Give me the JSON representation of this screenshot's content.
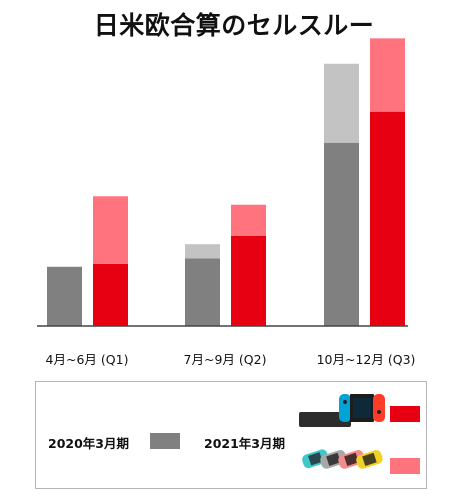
{
  "title": "日米欧合算のセルスルー",
  "colors": {
    "prev_year": "#808080",
    "prev_year_light": "#c3c3c3",
    "switch": "#e60012",
    "switch_lite": "#ff737e",
    "axis": "#444444"
  },
  "chart_data": {
    "type": "bar",
    "stacked": true,
    "title": "日米欧合算のセルスルー",
    "categories": [
      "4月~6月 (Q1)",
      "7月~9月 (Q2)",
      "10月~12月 (Q3)"
    ],
    "y_axis_printed": false,
    "ylim": [
      0,
      100
    ],
    "series": [
      {
        "name": "2020年3月期",
        "group": "2020年3月期",
        "segment": "base",
        "values": [
          21,
          24,
          65
        ]
      },
      {
        "name": "",
        "group": "2020年3月期",
        "segment": "top",
        "values": [
          0,
          5,
          28
        ]
      },
      {
        "name": "",
        "group": "2021年3月期",
        "segment": "Nintendo Switch",
        "values": [
          22,
          32,
          76
        ]
      },
      {
        "name": "",
        "group": "2021年3月期",
        "segment": "Nintendo Switch Lite",
        "values": [
          24,
          11,
          26
        ]
      }
    ]
  },
  "legend": {
    "prev_label": "2020年3月期",
    "curr_label": "2021年3月期",
    "switch_icon": "nintendo-switch-console-icon",
    "lite_icon": "nintendo-switch-lite-consoles-icon"
  }
}
